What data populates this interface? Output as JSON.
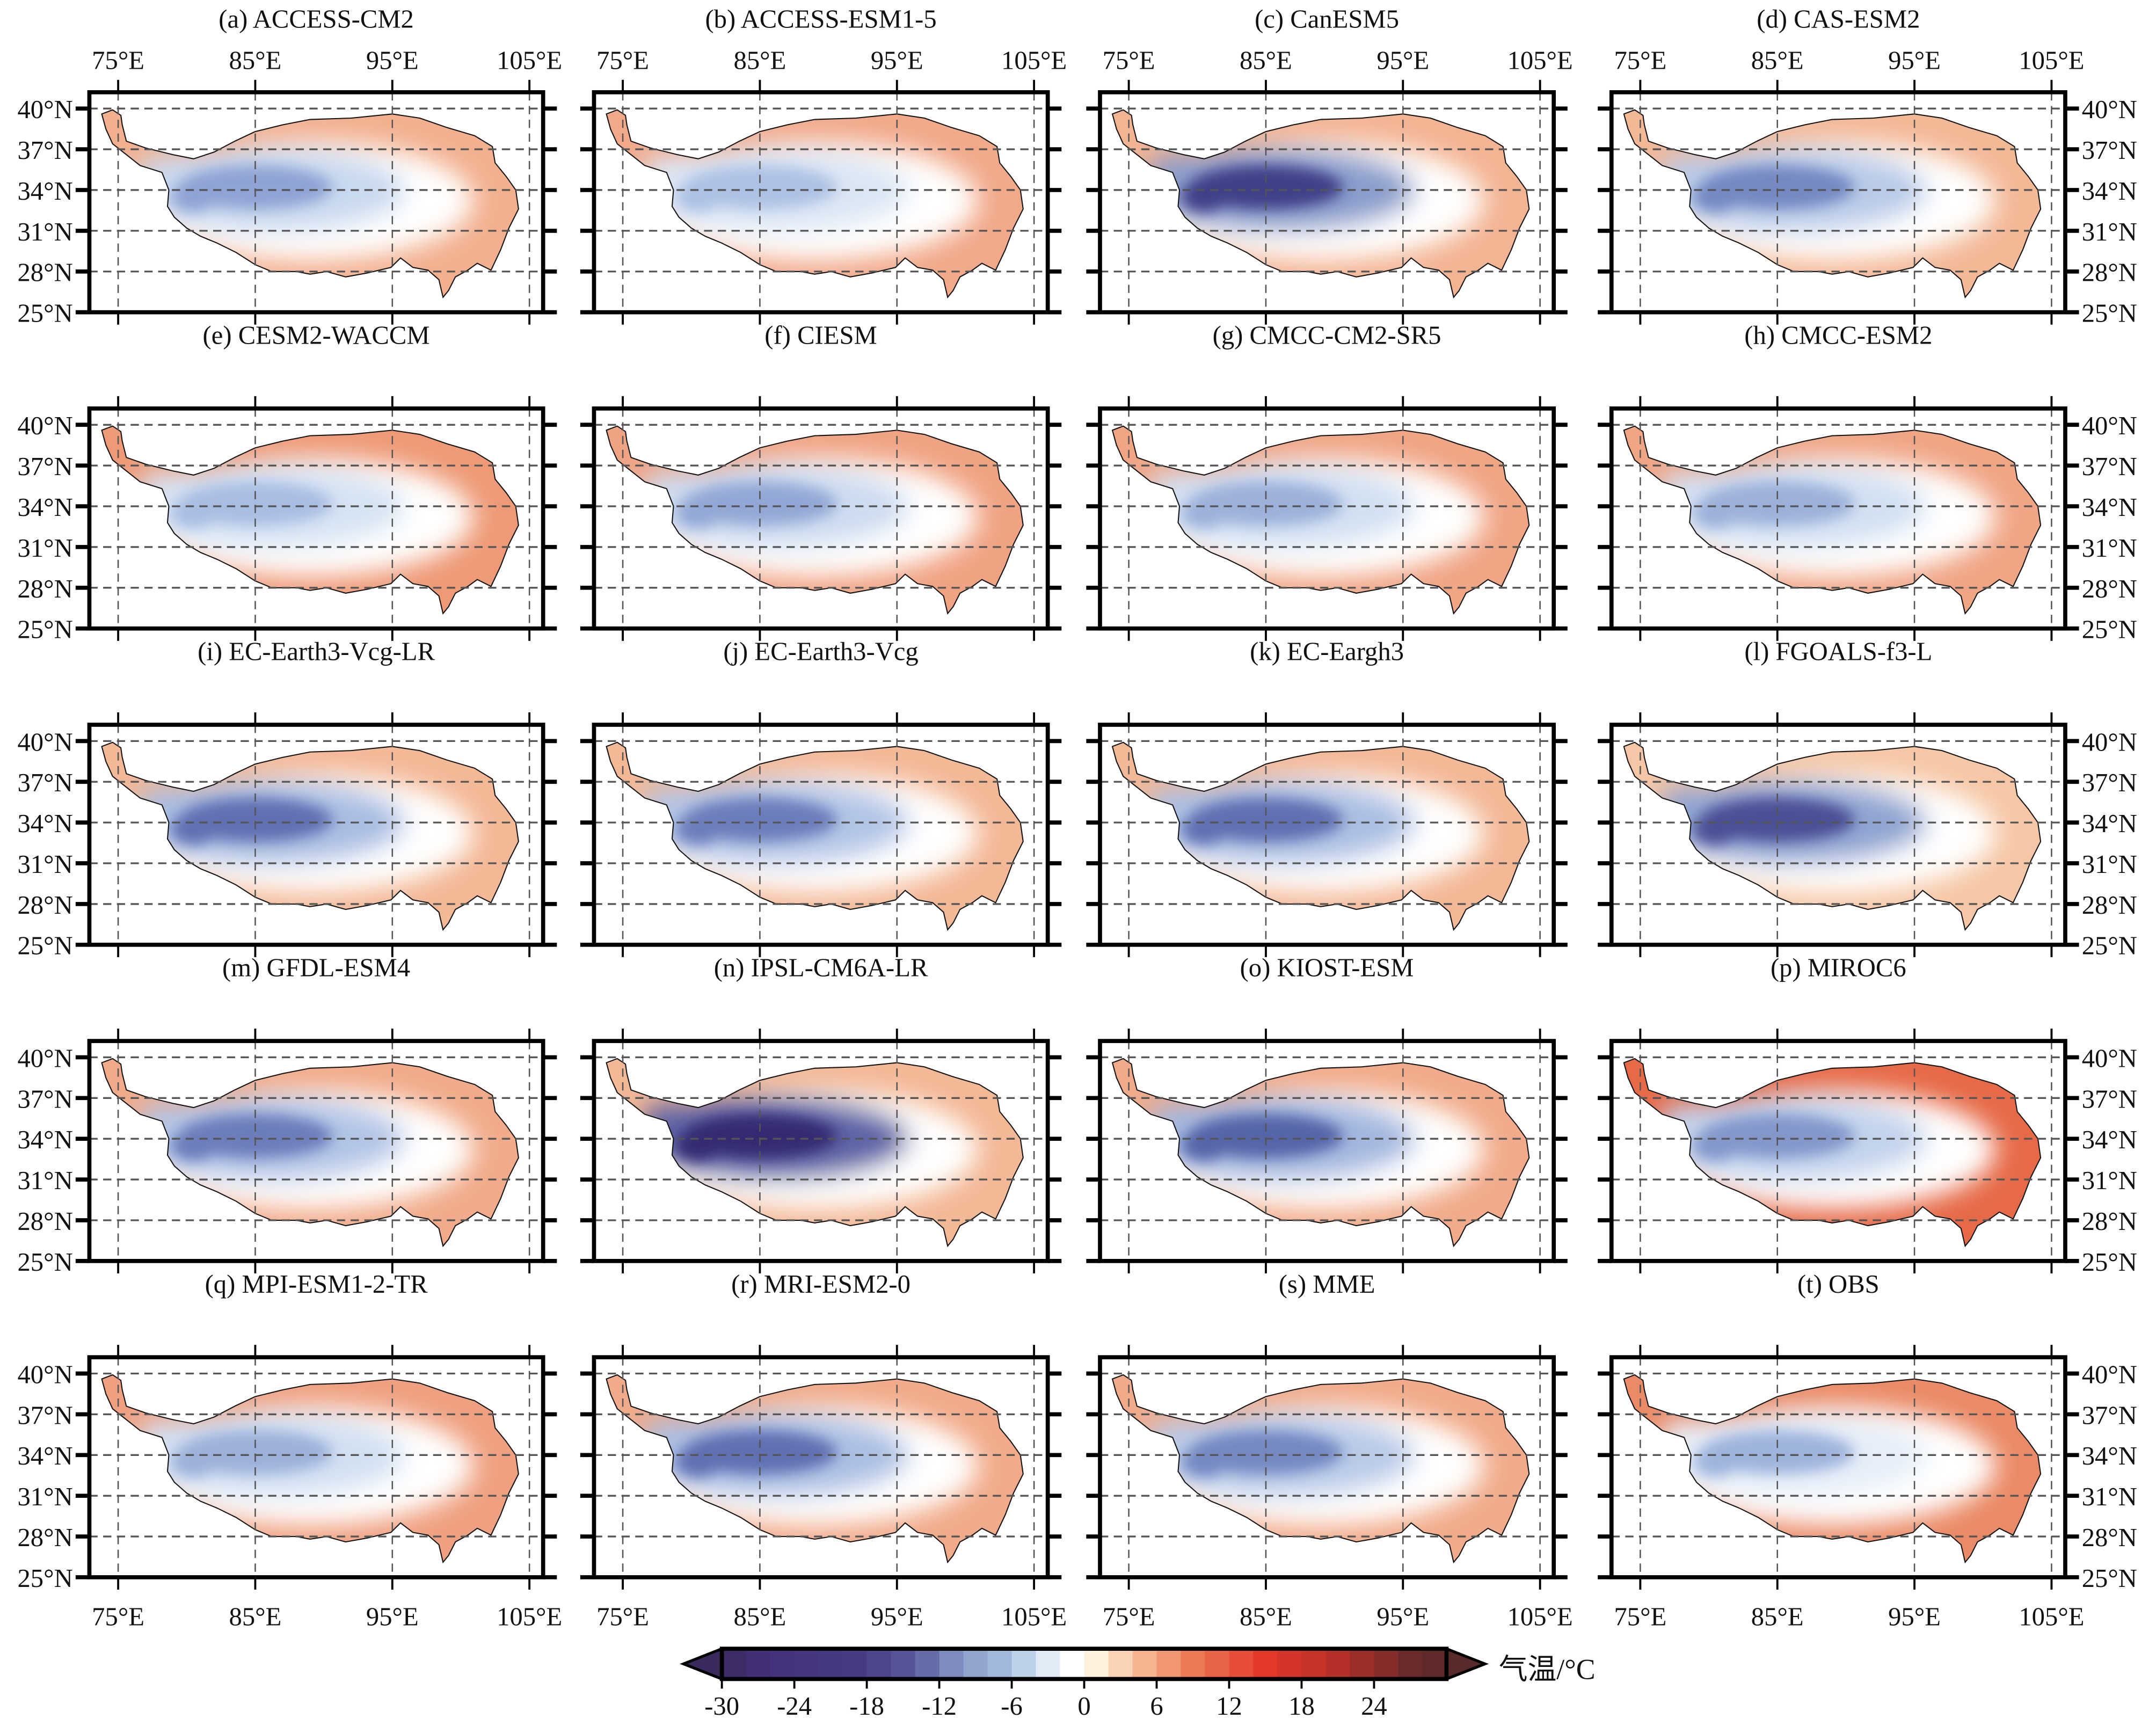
{
  "figure": {
    "lon_ticks": [
      75,
      85,
      95,
      105
    ],
    "lon_labels": [
      "75°E",
      "85°E",
      "95°E",
      "105°E"
    ],
    "lat_ticks": [
      40,
      37,
      34,
      31,
      28,
      25
    ],
    "lat_labels": [
      "40°N",
      "37°N",
      "34°N",
      "31°N",
      "28°N",
      "25°N"
    ],
    "lon_range": [
      72.9,
      106
    ],
    "lat_range": [
      25,
      41.2
    ]
  },
  "panels": [
    {
      "title": "(a) ACCESS-CM2",
      "core_color": "#8fa3d4",
      "mid_color": "#c9d9ef",
      "edge_color": "#f2b08f"
    },
    {
      "title": "(b) ACCESS-ESM1-5",
      "core_color": "#adc1e4",
      "mid_color": "#dbe6f4",
      "edge_color": "#f1a98a"
    },
    {
      "title": "(c) CanESM5",
      "core_color": "#403f88",
      "mid_color": "#8a9dcc",
      "edge_color": "#f3b493"
    },
    {
      "title": "(d) CAS-ESM2",
      "core_color": "#7588c2",
      "mid_color": "#b9cbe8",
      "edge_color": "#f3b896"
    },
    {
      "title": "(e) CESM2-WACCM",
      "core_color": "#a9bde3",
      "mid_color": "#d6e3f3",
      "edge_color": "#ee9a77"
    },
    {
      "title": "(f) CIESM",
      "core_color": "#93a7d6",
      "mid_color": "#cddcf0",
      "edge_color": "#f0a383"
    },
    {
      "title": "(g) CMCC-CM2-SR5",
      "core_color": "#9cb0da",
      "mid_color": "#d2e0f2",
      "edge_color": "#f0a585"
    },
    {
      "title": "(h) CMCC-ESM2",
      "core_color": "#9cb0da",
      "mid_color": "#d2e0f2",
      "edge_color": "#f0a585"
    },
    {
      "title": "(i) EC-Earth3-Vcg-LR",
      "core_color": "#6070b2",
      "mid_color": "#a9bde2",
      "edge_color": "#f3b896"
    },
    {
      "title": "(j) EC-Earth3-Vcg",
      "core_color": "#6c7dbb",
      "mid_color": "#b2c5e6",
      "edge_color": "#f3b896"
    },
    {
      "title": "(k) EC-Eargh3",
      "core_color": "#6070b2",
      "mid_color": "#abbfe3",
      "edge_color": "#f3b896"
    },
    {
      "title": "(l) FGOALS-f3-L",
      "core_color": "#4b4f95",
      "mid_color": "#90a4d2",
      "edge_color": "#f6c7a6"
    },
    {
      "title": "(m) GFDL-ESM4",
      "core_color": "#6c7dbb",
      "mid_color": "#b2c5e6",
      "edge_color": "#f1ab8a"
    },
    {
      "title": "(n) IPSL-CM6A-LR",
      "core_color": "#352b72",
      "mid_color": "#5d63a6",
      "edge_color": "#f3b896"
    },
    {
      "title": "(o) KIOST-ESM",
      "core_color": "#5565a9",
      "mid_color": "#a3b7df",
      "edge_color": "#f1ab8a"
    },
    {
      "title": "(p) MIROC6",
      "core_color": "#8397cb",
      "mid_color": "#c2d3ec",
      "edge_color": "#e66a48"
    },
    {
      "title": "(q) MPI-ESM1-2-TR",
      "core_color": "#9cb0da",
      "mid_color": "#d2e0f2",
      "edge_color": "#efa080"
    },
    {
      "title": "(r) MRI-ESM2-0",
      "core_color": "#6070b2",
      "mid_color": "#abbfe3",
      "edge_color": "#f1ab8a"
    },
    {
      "title": "(s) MME",
      "core_color": "#7588c2",
      "mid_color": "#b9cbe8",
      "edge_color": "#f1ab8a"
    },
    {
      "title": "(t) OBS",
      "core_color": "#9fb4dd",
      "mid_color": "#e6eef8",
      "edge_color": "#ea8a66"
    }
  ],
  "colorbar": {
    "label": "气温/°C",
    "range": [
      -30,
      30
    ],
    "bin": 2,
    "ticks": [
      -30,
      -24,
      -18,
      -12,
      -6,
      0,
      6,
      12,
      18,
      24
    ],
    "tick_labels": [
      "-30",
      "-24",
      "-18",
      "-12",
      "-6",
      "0",
      "6",
      "12",
      "18",
      "24"
    ],
    "extend": "both",
    "stops": [
      {
        "value": -30,
        "color": "#3a2a5e"
      },
      {
        "value": -26,
        "color": "#45307a"
      },
      {
        "value": -18,
        "color": "#483d88"
      },
      {
        "value": -14,
        "color": "#5a5c9c"
      },
      {
        "value": -10,
        "color": "#8a9bc8"
      },
      {
        "value": -6,
        "color": "#aac3e2"
      },
      {
        "value": -3,
        "color": "#e2ecf7"
      },
      {
        "value": -1,
        "color": "#ffffff"
      },
      {
        "value": 1,
        "color": "#fff3de"
      },
      {
        "value": 5,
        "color": "#f6b48f"
      },
      {
        "value": 9,
        "color": "#ec7a55"
      },
      {
        "value": 15,
        "color": "#e4382b"
      },
      {
        "value": 21,
        "color": "#b53028"
      },
      {
        "value": 27,
        "color": "#6b2b2b"
      },
      {
        "value": 30,
        "color": "#5a2a2a"
      }
    ]
  }
}
